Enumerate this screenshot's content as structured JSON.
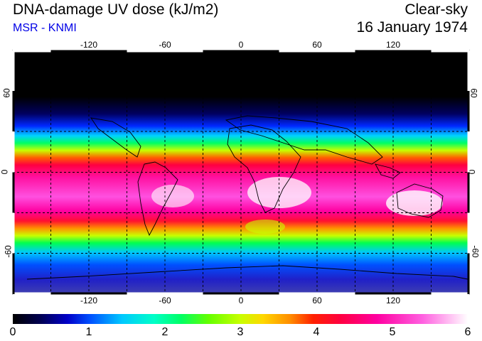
{
  "header": {
    "title": "DNA-damage UV dose (kJ/m2)",
    "subtitle": "MSR - KNMI",
    "sky_condition": "Clear-sky",
    "date": "16 January 1974"
  },
  "map": {
    "lon_ticks": [
      "-120",
      "-60",
      "0",
      "60",
      "120"
    ],
    "lat_ticks": [
      "60",
      "0",
      "-60"
    ],
    "lon_range": [
      -180,
      180
    ],
    "lat_range": [
      -90,
      90
    ],
    "grid": "dashed every 30 degrees",
    "projection": "equirectangular",
    "colors": {
      "polar_night": "#000000",
      "low": "#0000c8",
      "mid": "#00ff64",
      "high": "#ff0040",
      "peak": "#ffffff"
    }
  },
  "colorbar": {
    "labels": [
      "0",
      "1",
      "2",
      "3",
      "4",
      "5",
      "6"
    ],
    "range": [
      0,
      6
    ],
    "unit": "kJ/m2"
  }
}
